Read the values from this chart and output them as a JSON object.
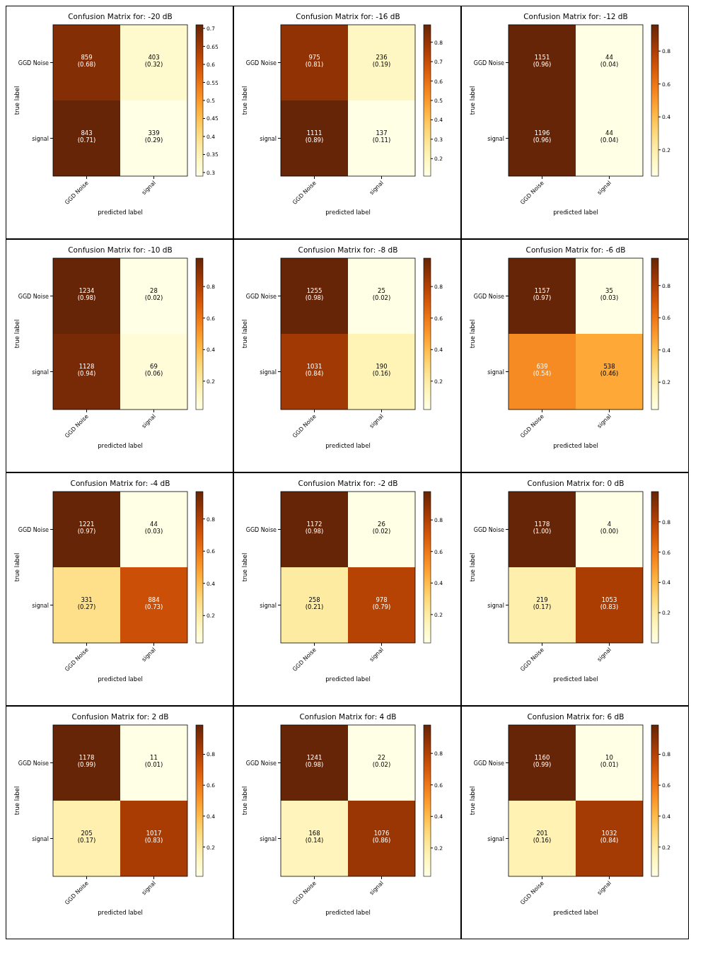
{
  "chart_data": [
    {
      "type": "heatmap",
      "title": "Confusion Matrix for: -20 dB",
      "xlabel": "predicted label",
      "ylabel": "true label",
      "categories": [
        "GGD Noise",
        "signal"
      ],
      "y_categories": [
        "GGD Noise",
        "signal"
      ],
      "cells": [
        [
          0.68,
          0.32
        ],
        [
          0.71,
          0.29
        ]
      ],
      "cell_labels": [
        [
          "859\n(0.68)",
          "403\n(0.32)"
        ],
        [
          "843\n(0.71)",
          "339\n(0.29)"
        ]
      ],
      "clim": [
        0.29,
        0.71
      ],
      "cticks": [
        0.3,
        0.35,
        0.4,
        0.45,
        0.5,
        0.55,
        0.6,
        0.65,
        0.7
      ]
    },
    {
      "type": "heatmap",
      "title": "Confusion Matrix for: -16 dB",
      "xlabel": "predicted label",
      "ylabel": "true label",
      "categories": [
        "GGD Noise",
        "signal"
      ],
      "y_categories": [
        "GGD Noise",
        "signal"
      ],
      "cells": [
        [
          0.81,
          0.19
        ],
        [
          0.89,
          0.11
        ]
      ],
      "cell_labels": [
        [
          "975\n(0.81)",
          "236\n(0.19)"
        ],
        [
          "1111\n(0.89)",
          "137\n(0.11)"
        ]
      ],
      "clim": [
        0.11,
        0.89
      ],
      "cticks": [
        0.2,
        0.3,
        0.4,
        0.5,
        0.6,
        0.7,
        0.8
      ]
    },
    {
      "type": "heatmap",
      "title": "Confusion Matrix for: -12 dB",
      "xlabel": "predicted label",
      "ylabel": "true label",
      "categories": [
        "GGD Noise",
        "signal"
      ],
      "y_categories": [
        "GGD Noise",
        "signal"
      ],
      "cells": [
        [
          0.96,
          0.04
        ],
        [
          0.96,
          0.04
        ]
      ],
      "cell_labels": [
        [
          "1151\n(0.96)",
          "44\n(0.04)"
        ],
        [
          "1196\n(0.96)",
          "44\n(0.04)"
        ]
      ],
      "clim": [
        0.04,
        0.96
      ],
      "cticks": [
        0.2,
        0.4,
        0.6,
        0.8
      ]
    },
    {
      "type": "heatmap",
      "title": "Confusion Matrix for: -10 dB",
      "xlabel": "predicted label",
      "ylabel": "true label",
      "categories": [
        "GGD Noise",
        "signal"
      ],
      "y_categories": [
        "GGD Noise",
        "signal"
      ],
      "cells": [
        [
          0.98,
          0.02
        ],
        [
          0.94,
          0.06
        ]
      ],
      "cell_labels": [
        [
          "1234\n(0.98)",
          "28\n(0.02)"
        ],
        [
          "1128\n(0.94)",
          "69\n(0.06)"
        ]
      ],
      "clim": [
        0.02,
        0.98
      ],
      "cticks": [
        0.2,
        0.4,
        0.6,
        0.8
      ]
    },
    {
      "type": "heatmap",
      "title": "Confusion Matrix for: -8 dB",
      "xlabel": "predicted label",
      "ylabel": "true label",
      "categories": [
        "GGD Noise",
        "signal"
      ],
      "y_categories": [
        "GGD Noise",
        "signal"
      ],
      "cells": [
        [
          0.98,
          0.02
        ],
        [
          0.84,
          0.16
        ]
      ],
      "cell_labels": [
        [
          "1255\n(0.98)",
          "25\n(0.02)"
        ],
        [
          "1031\n(0.84)",
          "190\n(0.16)"
        ]
      ],
      "clim": [
        0.02,
        0.98
      ],
      "cticks": [
        0.2,
        0.4,
        0.6,
        0.8
      ]
    },
    {
      "type": "heatmap",
      "title": "Confusion Matrix for: -6 dB",
      "xlabel": "predicted label",
      "ylabel": "true label",
      "categories": [
        "GGD Noise",
        "signal"
      ],
      "y_categories": [
        "GGD Noise",
        "signal"
      ],
      "cells": [
        [
          0.97,
          0.03
        ],
        [
          0.54,
          0.46
        ]
      ],
      "cell_labels": [
        [
          "1157\n(0.97)",
          "35\n(0.03)"
        ],
        [
          "639\n(0.54)",
          "538\n(0.46)"
        ]
      ],
      "clim": [
        0.03,
        0.97
      ],
      "cticks": [
        0.2,
        0.4,
        0.6,
        0.8
      ]
    },
    {
      "type": "heatmap",
      "title": "Confusion Matrix for: -4 dB",
      "xlabel": "predicted label",
      "ylabel": "true label",
      "categories": [
        "GGD Noise",
        "signal"
      ],
      "y_categories": [
        "GGD Noise",
        "signal"
      ],
      "cells": [
        [
          0.97,
          0.03
        ],
        [
          0.27,
          0.73
        ]
      ],
      "cell_labels": [
        [
          "1221\n(0.97)",
          "44\n(0.03)"
        ],
        [
          "331\n(0.27)",
          "884\n(0.73)"
        ]
      ],
      "clim": [
        0.03,
        0.97
      ],
      "cticks": [
        0.2,
        0.4,
        0.6,
        0.8
      ]
    },
    {
      "type": "heatmap",
      "title": "Confusion Matrix for: -2 dB",
      "xlabel": "predicted label",
      "ylabel": "true label",
      "categories": [
        "GGD Noise",
        "signal"
      ],
      "y_categories": [
        "GGD Noise",
        "signal"
      ],
      "cells": [
        [
          0.98,
          0.02
        ],
        [
          0.21,
          0.79
        ]
      ],
      "cell_labels": [
        [
          "1172\n(0.98)",
          "26\n(0.02)"
        ],
        [
          "258\n(0.21)",
          "978\n(0.79)"
        ]
      ],
      "clim": [
        0.02,
        0.98
      ],
      "cticks": [
        0.2,
        0.4,
        0.6,
        0.8
      ]
    },
    {
      "type": "heatmap",
      "title": "Confusion Matrix for: 0 dB",
      "xlabel": "predicted label",
      "ylabel": "true label",
      "categories": [
        "GGD Noise",
        "signal"
      ],
      "y_categories": [
        "GGD Noise",
        "signal"
      ],
      "cells": [
        [
          1.0,
          0.0
        ],
        [
          0.17,
          0.83
        ]
      ],
      "cell_labels": [
        [
          "1178\n(1.00)",
          "4\n(0.00)"
        ],
        [
          "219\n(0.17)",
          "1053\n(0.83)"
        ]
      ],
      "clim": [
        0.0,
        1.0
      ],
      "cticks": [
        0.2,
        0.4,
        0.6,
        0.8
      ]
    },
    {
      "type": "heatmap",
      "title": "Confusion Matrix for: 2 dB",
      "xlabel": "predicted label",
      "ylabel": "true label",
      "categories": [
        "GGD Noise",
        "signal"
      ],
      "y_categories": [
        "GGD Noise",
        "signal"
      ],
      "cells": [
        [
          0.99,
          0.01
        ],
        [
          0.17,
          0.83
        ]
      ],
      "cell_labels": [
        [
          "1178\n(0.99)",
          "11\n(0.01)"
        ],
        [
          "205\n(0.17)",
          "1017\n(0.83)"
        ]
      ],
      "clim": [
        0.01,
        0.99
      ],
      "cticks": [
        0.2,
        0.4,
        0.6,
        0.8
      ]
    },
    {
      "type": "heatmap",
      "title": "Confusion Matrix for: 4 dB",
      "xlabel": "predicted label",
      "ylabel": "true label",
      "categories": [
        "GGD Noise",
        "signal"
      ],
      "y_categories": [
        "GGD Noise",
        "signal"
      ],
      "cells": [
        [
          0.98,
          0.02
        ],
        [
          0.14,
          0.86
        ]
      ],
      "cell_labels": [
        [
          "1241\n(0.98)",
          "22\n(0.02)"
        ],
        [
          "168\n(0.14)",
          "1076\n(0.86)"
        ]
      ],
      "clim": [
        0.02,
        0.98
      ],
      "cticks": [
        0.2,
        0.4,
        0.6,
        0.8
      ]
    },
    {
      "type": "heatmap",
      "title": "Confusion Matrix for: 6 dB",
      "xlabel": "predicted label",
      "ylabel": "true label",
      "categories": [
        "GGD Noise",
        "signal"
      ],
      "y_categories": [
        "GGD Noise",
        "signal"
      ],
      "cells": [
        [
          0.99,
          0.01
        ],
        [
          0.16,
          0.84
        ]
      ],
      "cell_labels": [
        [
          "1160\n(0.99)",
          "10\n(0.01)"
        ],
        [
          "201\n(0.16)",
          "1032\n(0.84)"
        ]
      ],
      "clim": [
        0.01,
        0.99
      ],
      "cticks": [
        0.2,
        0.4,
        0.6,
        0.8
      ]
    }
  ]
}
